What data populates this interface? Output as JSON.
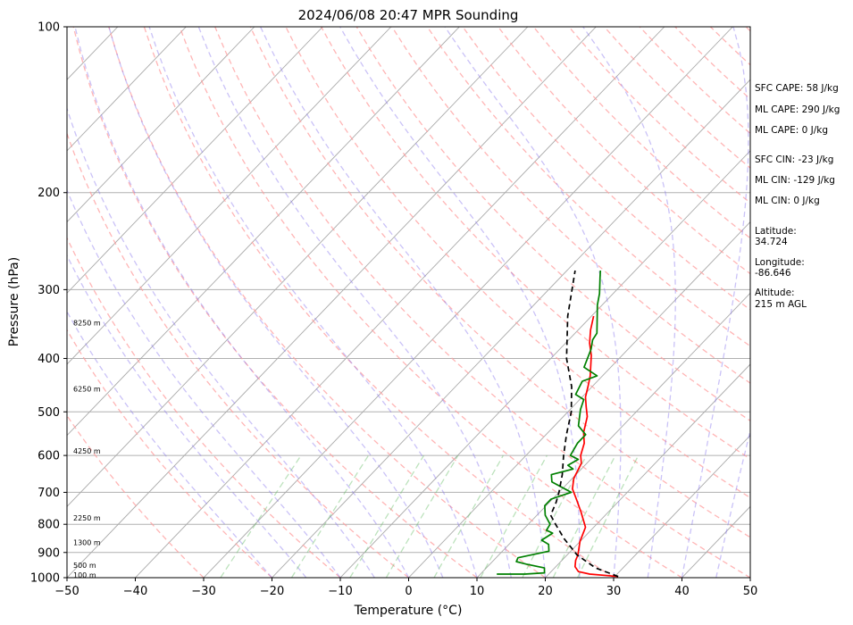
{
  "chart_data": {
    "type": "line",
    "title": "2024/06/08 20:47 MPR Sounding",
    "xlabel": "Temperature (°C)",
    "ylabel": "Pressure (hPa)",
    "xlim": [
      -50,
      50
    ],
    "ylim": [
      1000,
      100
    ],
    "y_scale": "log",
    "grid": true,
    "skew": true,
    "x_ticks": [
      "−50",
      "−40",
      "−30",
      "−20",
      "−10",
      "0",
      "10",
      "20",
      "30",
      "40",
      "50"
    ],
    "x_tick_values": [
      -50,
      -40,
      -30,
      -20,
      -10,
      0,
      10,
      20,
      30,
      40,
      50
    ],
    "y_ticks": [
      "100",
      "200",
      "300",
      "400",
      "500",
      "600",
      "700",
      "800",
      "900",
      "1000"
    ],
    "y_tick_values": [
      100,
      200,
      300,
      400,
      500,
      600,
      700,
      800,
      900,
      1000
    ],
    "altitude_labels": [
      {
        "text": "100 m",
        "pressure": 990
      },
      {
        "text": "500 m",
        "pressure": 950
      },
      {
        "text": "1300 m",
        "pressure": 865
      },
      {
        "text": "2250 m",
        "pressure": 780
      },
      {
        "text": "4250 m",
        "pressure": 590
      },
      {
        "text": "6250 m",
        "pressure": 455
      },
      {
        "text": "8250 m",
        "pressure": 345
      }
    ],
    "series": [
      {
        "color": "#ff0000",
        "points": [
          [
            30.5,
            995
          ],
          [
            26,
            985
          ],
          [
            24,
            975
          ],
          [
            22.8,
            955
          ],
          [
            22,
            930
          ],
          [
            21.6,
            910
          ],
          [
            20,
            860
          ],
          [
            18.8,
            810
          ],
          [
            16,
            760
          ],
          [
            13.5,
            720
          ],
          [
            11.5,
            690
          ],
          [
            10.2,
            660
          ],
          [
            9.2,
            620
          ],
          [
            8,
            600
          ],
          [
            6.8,
            570
          ],
          [
            5.2,
            545
          ],
          [
            3.5,
            510
          ],
          [
            2,
            490
          ],
          [
            0.5,
            470
          ],
          [
            -0.6,
            450
          ],
          [
            -1.8,
            430
          ],
          [
            -4.5,
            395
          ],
          [
            -6.5,
            375
          ],
          [
            -8.2,
            355
          ],
          [
            -9.7,
            335
          ]
        ]
      },
      {
        "color": "#008000",
        "points": [
          [
            12.4,
            985
          ],
          [
            16.5,
            985
          ],
          [
            19.2,
            980
          ],
          [
            18.5,
            960
          ],
          [
            15.3,
            945
          ],
          [
            13.5,
            935
          ],
          [
            13.2,
            920
          ],
          [
            16.8,
            895
          ],
          [
            15.8,
            870
          ],
          [
            14.2,
            855
          ],
          [
            14.8,
            830
          ],
          [
            13.5,
            820
          ],
          [
            13.2,
            800
          ],
          [
            11.2,
            770
          ],
          [
            9.8,
            740
          ],
          [
            9.8,
            720
          ],
          [
            11.8,
            700
          ],
          [
            7.5,
            670
          ],
          [
            6.4,
            650
          ],
          [
            8.8,
            635
          ],
          [
            7.5,
            625
          ],
          [
            8.2,
            610
          ],
          [
            6.5,
            600
          ],
          [
            5.8,
            570
          ],
          [
            5.8,
            550
          ],
          [
            3.5,
            530
          ],
          [
            1.5,
            495
          ],
          [
            0.6,
            475
          ],
          [
            -1.3,
            465
          ],
          [
            -2.2,
            440
          ],
          [
            -0.8,
            430
          ],
          [
            -3.9,
            415
          ],
          [
            -5.4,
            385
          ],
          [
            -6.5,
            370
          ],
          [
            -6.8,
            360
          ],
          [
            -8.2,
            345
          ],
          [
            -10.7,
            320
          ],
          [
            -12,
            305
          ],
          [
            -14.2,
            285
          ],
          [
            -15.1,
            277
          ]
        ]
      },
      {
        "color": "#000000",
        "dashed": true,
        "points": [
          [
            30.5,
            995
          ],
          [
            26,
            960
          ],
          [
            21.5,
            910
          ],
          [
            17.3,
            850
          ],
          [
            14,
            800
          ],
          [
            12,
            770
          ],
          [
            11,
            730
          ],
          [
            10,
            700
          ],
          [
            8,
            650
          ],
          [
            5.5,
            600
          ],
          [
            3,
            550
          ],
          [
            0.5,
            500
          ],
          [
            -3,
            450
          ],
          [
            -7.7,
            400
          ],
          [
            -13.5,
            335
          ],
          [
            -18.8,
            277
          ]
        ]
      }
    ]
  },
  "side_panel": {
    "sfc_cape": "SFC CAPE: 58 J/kg",
    "ml_cape_1": "ML CAPE: 290 J/kg",
    "ml_cape_2": "ML CAPE: 0 J/kg",
    "sfc_cin": "SFC CIN: -23 J/kg",
    "ml_cin_1": "ML CIN: -129 J/kg",
    "ml_cin_2": "ML CIN: 0 J/kg",
    "latitude_label": "Latitude:",
    "latitude_value": "34.724",
    "longitude_label": "Longitude:",
    "longitude_value": "-86.646",
    "altitude_label": "Altitude:",
    "altitude_value": "215 m AGL"
  }
}
